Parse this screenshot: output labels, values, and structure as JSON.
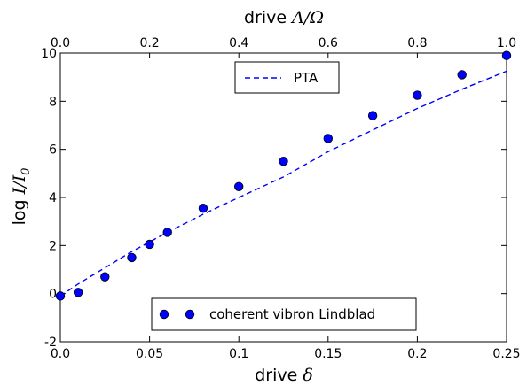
{
  "chart_data": {
    "type": "scatter",
    "xlabel_prefix": "drive",
    "xlabel_symbol": "δ",
    "top_xlabel_prefix": "drive",
    "top_xlabel_symbol": "A/Ω",
    "ylabel_prefix": "log",
    "ylabel_symbol": "I/I",
    "ylabel_subscript": "0",
    "xlim": [
      0.0,
      0.25
    ],
    "ylim": [
      -2,
      10
    ],
    "top_xlim": [
      0.0,
      1.0
    ],
    "x_ticks": [
      "0.0",
      "0.05",
      "0.1",
      "0.15",
      "0.2",
      "0.25"
    ],
    "y_ticks": [
      "-2",
      "0",
      "2",
      "4",
      "6",
      "8",
      "10"
    ],
    "top_x_ticks": [
      "0.0",
      "0.2",
      "0.4",
      "0.6",
      "0.8",
      "1.0"
    ],
    "grid": false,
    "series": [
      {
        "name": "coherent vibron Lindblad",
        "style": "markers",
        "color": "#0000ff",
        "legend_position": "lower-center",
        "x": [
          0.0,
          0.01,
          0.025,
          0.04,
          0.05,
          0.06,
          0.08,
          0.1,
          0.125,
          0.15,
          0.175,
          0.2,
          0.225,
          0.25
        ],
        "y": [
          -0.1,
          0.05,
          0.7,
          1.5,
          2.05,
          2.55,
          3.55,
          4.45,
          5.5,
          6.45,
          7.4,
          8.25,
          9.1,
          9.9
        ]
      },
      {
        "name": "PTA",
        "style": "dashed-line",
        "color": "#0000ff",
        "legend_position": "upper-center",
        "x": [
          0.0,
          0.01,
          0.02,
          0.03,
          0.04,
          0.05,
          0.06,
          0.08,
          0.1,
          0.125,
          0.15,
          0.175,
          0.2,
          0.225,
          0.25
        ],
        "y": [
          -0.1,
          0.4,
          0.85,
          1.3,
          1.75,
          2.15,
          2.55,
          3.3,
          4.0,
          4.85,
          5.9,
          6.8,
          7.7,
          8.5,
          9.25
        ]
      }
    ]
  }
}
